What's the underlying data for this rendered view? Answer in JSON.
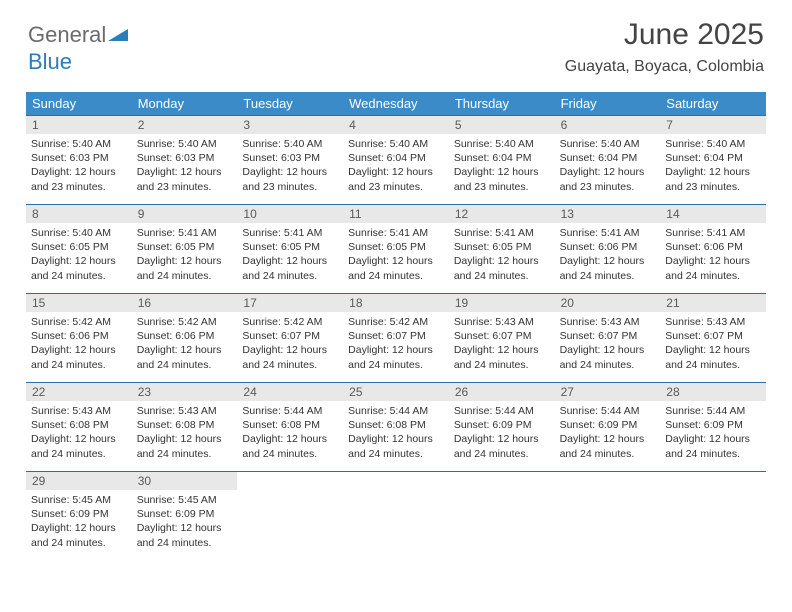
{
  "logo": {
    "text1": "General",
    "text2": "Blue"
  },
  "header": {
    "month_title": "June 2025",
    "location": "Guayata, Boyaca, Colombia"
  },
  "colors": {
    "header_bar": "#3b8bc9",
    "header_text": "#ffffff",
    "daynum_bg": "#e8e8e8",
    "daynum_text": "#5a5a5a",
    "border": "#2a6ea8",
    "logo_gray": "#6b6b6b",
    "logo_blue": "#2a7fba"
  },
  "weekdays": [
    "Sunday",
    "Monday",
    "Tuesday",
    "Wednesday",
    "Thursday",
    "Friday",
    "Saturday"
  ],
  "weeks": [
    [
      {
        "n": "1",
        "sunrise": "Sunrise: 5:40 AM",
        "sunset": "Sunset: 6:03 PM",
        "day": "Daylight: 12 hours and 23 minutes."
      },
      {
        "n": "2",
        "sunrise": "Sunrise: 5:40 AM",
        "sunset": "Sunset: 6:03 PM",
        "day": "Daylight: 12 hours and 23 minutes."
      },
      {
        "n": "3",
        "sunrise": "Sunrise: 5:40 AM",
        "sunset": "Sunset: 6:03 PM",
        "day": "Daylight: 12 hours and 23 minutes."
      },
      {
        "n": "4",
        "sunrise": "Sunrise: 5:40 AM",
        "sunset": "Sunset: 6:04 PM",
        "day": "Daylight: 12 hours and 23 minutes."
      },
      {
        "n": "5",
        "sunrise": "Sunrise: 5:40 AM",
        "sunset": "Sunset: 6:04 PM",
        "day": "Daylight: 12 hours and 23 minutes."
      },
      {
        "n": "6",
        "sunrise": "Sunrise: 5:40 AM",
        "sunset": "Sunset: 6:04 PM",
        "day": "Daylight: 12 hours and 23 minutes."
      },
      {
        "n": "7",
        "sunrise": "Sunrise: 5:40 AM",
        "sunset": "Sunset: 6:04 PM",
        "day": "Daylight: 12 hours and 23 minutes."
      }
    ],
    [
      {
        "n": "8",
        "sunrise": "Sunrise: 5:40 AM",
        "sunset": "Sunset: 6:05 PM",
        "day": "Daylight: 12 hours and 24 minutes."
      },
      {
        "n": "9",
        "sunrise": "Sunrise: 5:41 AM",
        "sunset": "Sunset: 6:05 PM",
        "day": "Daylight: 12 hours and 24 minutes."
      },
      {
        "n": "10",
        "sunrise": "Sunrise: 5:41 AM",
        "sunset": "Sunset: 6:05 PM",
        "day": "Daylight: 12 hours and 24 minutes."
      },
      {
        "n": "11",
        "sunrise": "Sunrise: 5:41 AM",
        "sunset": "Sunset: 6:05 PM",
        "day": "Daylight: 12 hours and 24 minutes."
      },
      {
        "n": "12",
        "sunrise": "Sunrise: 5:41 AM",
        "sunset": "Sunset: 6:05 PM",
        "day": "Daylight: 12 hours and 24 minutes."
      },
      {
        "n": "13",
        "sunrise": "Sunrise: 5:41 AM",
        "sunset": "Sunset: 6:06 PM",
        "day": "Daylight: 12 hours and 24 minutes."
      },
      {
        "n": "14",
        "sunrise": "Sunrise: 5:41 AM",
        "sunset": "Sunset: 6:06 PM",
        "day": "Daylight: 12 hours and 24 minutes."
      }
    ],
    [
      {
        "n": "15",
        "sunrise": "Sunrise: 5:42 AM",
        "sunset": "Sunset: 6:06 PM",
        "day": "Daylight: 12 hours and 24 minutes."
      },
      {
        "n": "16",
        "sunrise": "Sunrise: 5:42 AM",
        "sunset": "Sunset: 6:06 PM",
        "day": "Daylight: 12 hours and 24 minutes."
      },
      {
        "n": "17",
        "sunrise": "Sunrise: 5:42 AM",
        "sunset": "Sunset: 6:07 PM",
        "day": "Daylight: 12 hours and 24 minutes."
      },
      {
        "n": "18",
        "sunrise": "Sunrise: 5:42 AM",
        "sunset": "Sunset: 6:07 PM",
        "day": "Daylight: 12 hours and 24 minutes."
      },
      {
        "n": "19",
        "sunrise": "Sunrise: 5:43 AM",
        "sunset": "Sunset: 6:07 PM",
        "day": "Daylight: 12 hours and 24 minutes."
      },
      {
        "n": "20",
        "sunrise": "Sunrise: 5:43 AM",
        "sunset": "Sunset: 6:07 PM",
        "day": "Daylight: 12 hours and 24 minutes."
      },
      {
        "n": "21",
        "sunrise": "Sunrise: 5:43 AM",
        "sunset": "Sunset: 6:07 PM",
        "day": "Daylight: 12 hours and 24 minutes."
      }
    ],
    [
      {
        "n": "22",
        "sunrise": "Sunrise: 5:43 AM",
        "sunset": "Sunset: 6:08 PM",
        "day": "Daylight: 12 hours and 24 minutes."
      },
      {
        "n": "23",
        "sunrise": "Sunrise: 5:43 AM",
        "sunset": "Sunset: 6:08 PM",
        "day": "Daylight: 12 hours and 24 minutes."
      },
      {
        "n": "24",
        "sunrise": "Sunrise: 5:44 AM",
        "sunset": "Sunset: 6:08 PM",
        "day": "Daylight: 12 hours and 24 minutes."
      },
      {
        "n": "25",
        "sunrise": "Sunrise: 5:44 AM",
        "sunset": "Sunset: 6:08 PM",
        "day": "Daylight: 12 hours and 24 minutes."
      },
      {
        "n": "26",
        "sunrise": "Sunrise: 5:44 AM",
        "sunset": "Sunset: 6:09 PM",
        "day": "Daylight: 12 hours and 24 minutes."
      },
      {
        "n": "27",
        "sunrise": "Sunrise: 5:44 AM",
        "sunset": "Sunset: 6:09 PM",
        "day": "Daylight: 12 hours and 24 minutes."
      },
      {
        "n": "28",
        "sunrise": "Sunrise: 5:44 AM",
        "sunset": "Sunset: 6:09 PM",
        "day": "Daylight: 12 hours and 24 minutes."
      }
    ],
    [
      {
        "n": "29",
        "sunrise": "Sunrise: 5:45 AM",
        "sunset": "Sunset: 6:09 PM",
        "day": "Daylight: 12 hours and 24 minutes."
      },
      {
        "n": "30",
        "sunrise": "Sunrise: 5:45 AM",
        "sunset": "Sunset: 6:09 PM",
        "day": "Daylight: 12 hours and 24 minutes."
      },
      null,
      null,
      null,
      null,
      null
    ]
  ]
}
